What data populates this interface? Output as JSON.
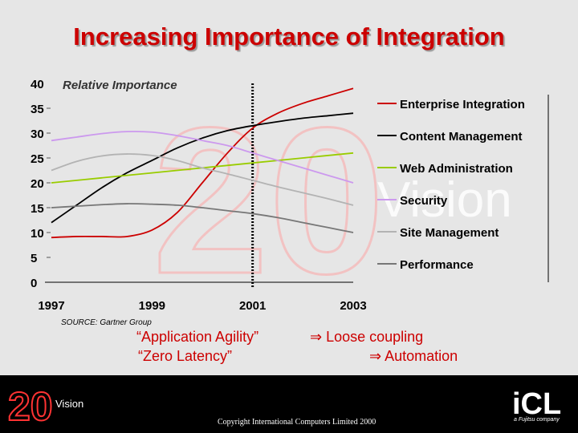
{
  "slide": {
    "title": "Increasing Importance of Integration",
    "source": "SOURCE: Gartner Group",
    "quotes": {
      "left1": "“Application Agility”",
      "left2": "“Zero Latency”",
      "right1": "⇒ Loose coupling",
      "right2": "⇒ Automation"
    },
    "footer": {
      "copyright": "Copyright International Computers Limited 2000",
      "vision_logo_text": "Vision",
      "icl_logo_text": "iCL",
      "icl_tagline": "a Fujitsu company"
    },
    "watermark": {
      "text": "Vision",
      "number": "20"
    }
  },
  "chart_data": {
    "type": "line",
    "ylabel": "Relative Importance",
    "ylim": [
      0,
      40
    ],
    "xlim": [
      1997,
      2003
    ],
    "y_ticks": [
      0,
      5,
      10,
      15,
      20,
      25,
      30,
      35,
      40
    ],
    "x_ticks": [
      1997,
      1999,
      2001,
      2003
    ],
    "marker_line_x": 2001,
    "legend_position": "right",
    "series": [
      {
        "name": "Enterprise Integration",
        "color": "#cc0000",
        "x": [
          1997,
          1997.5,
          1998,
          1998.5,
          1999,
          1999.5,
          2000,
          2000.5,
          2001,
          2001.5,
          2002,
          2002.5,
          2003
        ],
        "y": [
          9,
          9.2,
          9.2,
          9.2,
          10.5,
          14,
          20,
          26,
          31,
          34,
          36,
          37.5,
          39
        ]
      },
      {
        "name": "Content Management",
        "color": "#000000",
        "x": [
          1997,
          1997.5,
          1998,
          1998.5,
          1999,
          1999.5,
          2000,
          2000.5,
          2001,
          2001.5,
          2002,
          2002.5,
          2003
        ],
        "y": [
          12,
          15.5,
          19,
          22,
          24.5,
          27,
          29,
          30.5,
          31.5,
          32.3,
          33,
          33.5,
          34
        ]
      },
      {
        "name": "Web Administration",
        "color": "#99cc00",
        "x": [
          1997,
          1998,
          1999,
          2000,
          2001,
          2002,
          2003
        ],
        "y": [
          20,
          21,
          22,
          23,
          24,
          25,
          26
        ]
      },
      {
        "name": "Security",
        "color": "#cc99ee",
        "x": [
          1997,
          1997.5,
          1998,
          1998.5,
          1999,
          1999.5,
          2000,
          2000.5,
          2001,
          2001.5,
          2002,
          2002.5,
          2003
        ],
        "y": [
          28.5,
          29.2,
          29.9,
          30.3,
          30.2,
          29.5,
          28.5,
          27.5,
          26,
          24.5,
          23,
          21.5,
          20
        ]
      },
      {
        "name": "Site Management",
        "color": "#b3b3b3",
        "x": [
          1997,
          1997.5,
          1998,
          1998.5,
          1999,
          1999.5,
          2000,
          2000.5,
          2001,
          2001.5,
          2002,
          2002.5,
          2003
        ],
        "y": [
          22.5,
          24.3,
          25.4,
          25.8,
          25.5,
          24.5,
          23,
          21.8,
          20.5,
          19.2,
          18,
          16.8,
          15.5
        ]
      },
      {
        "name": "Performance",
        "color": "#777777",
        "x": [
          1997,
          1997.5,
          1998,
          1998.5,
          1999,
          1999.5,
          2000,
          2000.5,
          2001,
          2001.5,
          2002,
          2002.5,
          2003
        ],
        "y": [
          15,
          15.3,
          15.6,
          15.8,
          15.7,
          15.5,
          15,
          14.4,
          13.8,
          13,
          12,
          11,
          10
        ]
      }
    ]
  }
}
